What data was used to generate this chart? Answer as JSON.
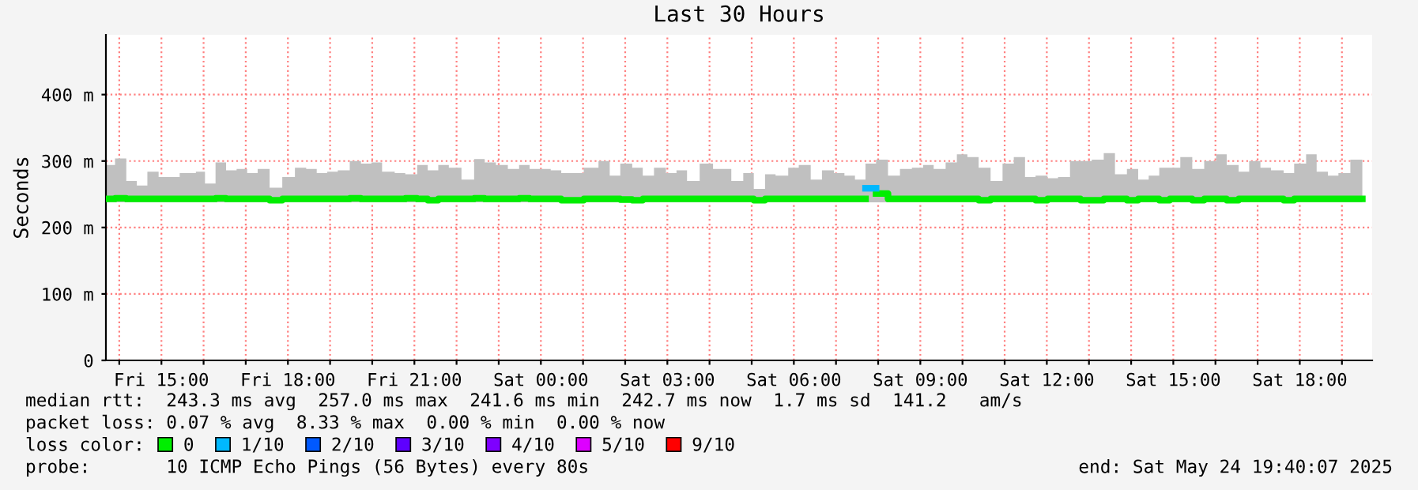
{
  "chart_data": {
    "type": "step",
    "title": "Last 30 Hours",
    "ylabel": "Seconds",
    "legend_title": "loss color:",
    "xlim": [
      "2025-05-23T13:41",
      "2025-05-24T19:43"
    ],
    "ylim": [
      0,
      490
    ],
    "xticks": [
      {
        "value": "2025-05-23T14:00",
        "label": null
      },
      {
        "value": "2025-05-23T15:00",
        "label": "Fri 15:00"
      },
      {
        "value": "2025-05-23T16:00",
        "label": null
      },
      {
        "value": "2025-05-23T17:00",
        "label": null
      },
      {
        "value": "2025-05-23T18:00",
        "label": "Fri 18:00"
      },
      {
        "value": "2025-05-23T19:00",
        "label": null
      },
      {
        "value": "2025-05-23T20:00",
        "label": null
      },
      {
        "value": "2025-05-23T21:00",
        "label": "Fri 21:00"
      },
      {
        "value": "2025-05-23T22:00",
        "label": null
      },
      {
        "value": "2025-05-23T23:00",
        "label": null
      },
      {
        "value": "2025-05-24T00:00",
        "label": "Sat 00:00"
      },
      {
        "value": "2025-05-24T01:00",
        "label": null
      },
      {
        "value": "2025-05-24T02:00",
        "label": null
      },
      {
        "value": "2025-05-24T03:00",
        "label": "Sat 03:00"
      },
      {
        "value": "2025-05-24T04:00",
        "label": null
      },
      {
        "value": "2025-05-24T05:00",
        "label": null
      },
      {
        "value": "2025-05-24T06:00",
        "label": "Sat 06:00"
      },
      {
        "value": "2025-05-24T07:00",
        "label": null
      },
      {
        "value": "2025-05-24T08:00",
        "label": null
      },
      {
        "value": "2025-05-24T09:00",
        "label": "Sat 09:00"
      },
      {
        "value": "2025-05-24T10:00",
        "label": null
      },
      {
        "value": "2025-05-24T11:00",
        "label": null
      },
      {
        "value": "2025-05-24T12:00",
        "label": "Sat 12:00"
      },
      {
        "value": "2025-05-24T13:00",
        "label": null
      },
      {
        "value": "2025-05-24T14:00",
        "label": null
      },
      {
        "value": "2025-05-24T15:00",
        "label": "Sat 15:00"
      },
      {
        "value": "2025-05-24T16:00",
        "label": null
      },
      {
        "value": "2025-05-24T17:00",
        "label": null
      },
      {
        "value": "2025-05-24T18:00",
        "label": "Sat 18:00"
      },
      {
        "value": "2025-05-24T19:00",
        "label": null
      }
    ],
    "yticks": [
      0,
      {
        "value": 100,
        "label": "100 m"
      },
      {
        "value": 200,
        "label": "200 m"
      },
      {
        "value": 300,
        "label": "300 m"
      },
      {
        "value": 400,
        "label": "400 m"
      }
    ],
    "grid": true,
    "legend": "bottom",
    "annotations": [
      "median rtt:  243.3 ms avg  257.0 ms max  241.6 ms min  242.7 ms now  1.7 ms sd  141.2   am/s",
      "packet loss: 0.07 % avg  8.33 % max  0.00 % min  0.00 % now",
      "probe:       10 ICMP Echo Pings (56 Bytes) every 80s",
      "end: Sat May 24 19:40:07 2025"
    ],
    "series": [
      {
        "name": "0",
        "color": "#00ee00",
        "x": [
          "2025-05-23T13:41",
          "2025-05-23T13:54",
          "2025-05-23T14:10",
          "2025-05-23T14:25",
          "2025-05-23T14:40",
          "2025-05-23T14:56",
          "2025-05-23T15:26",
          "2025-05-23T15:49",
          "2025-05-23T16:02",
          "2025-05-23T16:17",
          "2025-05-23T16:32",
          "2025-05-23T16:47",
          "2025-05-23T17:02",
          "2025-05-23T17:17",
          "2025-05-23T17:34",
          "2025-05-23T17:52",
          "2025-05-23T18:10",
          "2025-05-23T18:26",
          "2025-05-23T18:41",
          "2025-05-23T18:56",
          "2025-05-23T19:11",
          "2025-05-23T19:28",
          "2025-05-23T19:44",
          "2025-05-23T19:59",
          "2025-05-23T20:14",
          "2025-05-23T20:32",
          "2025-05-23T20:47",
          "2025-05-23T21:04",
          "2025-05-23T21:19",
          "2025-05-23T21:34",
          "2025-05-23T21:49",
          "2025-05-23T22:07",
          "2025-05-23T22:25",
          "2025-05-23T22:40",
          "2025-05-23T22:56",
          "2025-05-23T23:13",
          "2025-05-23T23:29",
          "2025-05-23T23:44",
          "2025-05-23T23:59",
          "2025-05-24T00:14",
          "2025-05-24T00:29",
          "2025-05-24T01:01",
          "2025-05-24T01:22",
          "2025-05-24T01:38",
          "2025-05-24T01:53",
          "2025-05-24T02:10",
          "2025-05-24T02:25",
          "2025-05-24T02:41",
          "2025-05-24T02:58",
          "2025-05-24T03:13",
          "2025-05-24T03:28",
          "2025-05-24T03:46",
          "2025-05-24T04:05",
          "2025-05-24T04:31",
          "2025-05-24T04:48",
          "2025-05-24T05:03",
          "2025-05-24T05:19",
          "2025-05-24T05:34",
          "2025-05-24T05:52",
          "2025-05-24T06:07",
          "2025-05-24T06:24",
          "2025-05-24T06:40",
          "2025-05-24T06:57",
          "2025-05-24T07:12",
          "2025-05-24T07:27",
          "2025-05-24T07:42",
          "2025-05-24T07:57",
          "2025-05-24T08:14",
          "2025-05-24T08:31",
          "2025-05-24T08:48",
          "2025-05-24T09:04",
          "2025-05-24T09:19",
          "2025-05-24T09:36",
          "2025-05-24T09:52",
          "2025-05-24T10:07",
          "2025-05-24T10:23",
          "2025-05-24T10:40",
          "2025-05-24T10:57",
          "2025-05-24T11:13",
          "2025-05-24T11:29",
          "2025-05-24T11:44",
          "2025-05-24T12:01",
          "2025-05-24T12:16",
          "2025-05-24T12:33",
          "2025-05-24T12:48",
          "2025-05-24T13:04",
          "2025-05-24T13:21",
          "2025-05-24T13:37",
          "2025-05-24T13:54",
          "2025-05-24T14:10",
          "2025-05-24T14:25",
          "2025-05-24T14:40",
          "2025-05-24T14:55",
          "2025-05-24T15:10",
          "2025-05-24T15:27",
          "2025-05-24T15:44",
          "2025-05-24T16:01",
          "2025-05-24T16:16",
          "2025-05-24T16:33",
          "2025-05-24T16:48",
          "2025-05-24T17:04",
          "2025-05-24T17:19",
          "2025-05-24T17:37",
          "2025-05-24T17:52",
          "2025-05-24T18:09",
          "2025-05-24T18:24",
          "2025-05-24T18:40",
          "2025-05-24T18:55",
          "2025-05-24T19:12",
          "2025-05-24T19:29"
        ],
        "values": [
          243,
          244,
          243,
          243,
          243,
          243,
          243,
          243,
          243,
          244,
          243,
          243,
          243,
          243,
          241,
          243,
          243,
          243,
          243,
          243,
          243,
          244,
          243,
          243,
          243,
          243,
          244,
          243,
          241,
          243,
          243,
          243,
          244,
          243,
          243,
          243,
          244,
          243,
          243,
          243,
          241,
          243,
          243,
          243,
          242,
          241,
          243,
          243,
          243,
          243,
          243,
          243,
          243,
          243,
          243,
          241,
          243,
          243,
          243,
          243,
          243,
          243,
          243,
          243,
          243,
          null,
          251,
          243,
          243,
          243,
          243,
          243,
          243,
          243,
          243,
          241,
          243,
          243,
          243,
          243,
          241,
          243,
          243,
          243,
          241,
          241,
          243,
          243,
          241,
          243,
          243,
          241,
          243,
          243,
          241,
          243,
          243,
          241,
          243,
          243,
          243,
          243,
          241,
          243,
          243,
          243,
          243,
          243,
          243,
          243
        ],
        "lower": [
          238,
          238,
          238,
          238,
          238,
          238,
          238,
          238,
          238,
          238,
          238,
          238,
          238,
          238,
          238,
          238,
          238,
          238,
          238,
          238,
          238,
          238,
          238,
          238,
          238,
          238,
          238,
          238,
          238,
          238,
          238,
          238,
          238,
          238,
          238,
          238,
          238,
          238,
          238,
          238,
          238,
          238,
          238,
          238,
          238,
          238,
          238,
          238,
          238,
          238,
          238,
          238,
          238,
          238,
          238,
          238,
          238,
          238,
          238,
          238,
          238,
          238,
          238,
          238,
          238,
          238,
          238,
          238,
          238,
          238,
          238,
          238,
          238,
          238,
          238,
          238,
          238,
          238,
          238,
          238,
          238,
          238,
          238,
          238,
          238,
          238,
          238,
          238,
          238,
          238,
          238,
          238,
          238,
          238,
          238,
          238,
          238,
          238,
          238,
          238,
          238,
          238,
          238,
          238,
          238,
          238,
          238,
          238,
          238,
          238
        ],
        "upper": [
          294,
          304,
          270,
          263,
          284,
          276,
          282,
          284,
          266,
          298,
          286,
          288,
          282,
          288,
          260,
          276,
          290,
          288,
          282,
          284,
          286,
          300,
          296,
          298,
          284,
          282,
          280,
          294,
          286,
          294,
          290,
          272,
          303,
          298,
          294,
          288,
          294,
          288,
          288,
          286,
          282,
          290,
          300,
          278,
          296,
          290,
          278,
          290,
          282,
          286,
          270,
          296,
          288,
          270,
          282,
          258,
          280,
          278,
          290,
          294,
          272,
          286,
          282,
          278,
          272,
          296,
          302,
          278,
          288,
          290,
          294,
          288,
          298,
          310,
          306,
          290,
          270,
          296,
          306,
          276,
          278,
          274,
          276,
          300,
          300,
          302,
          312,
          280,
          288,
          272,
          278,
          290,
          290,
          306,
          288,
          300,
          310,
          294,
          284,
          300,
          290,
          286,
          282,
          296,
          310,
          284,
          278,
          282,
          302,
          302
        ]
      },
      {
        "name": "1/10",
        "color": "#00b8ff",
        "x": [
          "2025-05-24T07:42",
          "2025-05-24T07:57"
        ],
        "values": [
          259,
          259
        ]
      },
      {
        "name": "2/10",
        "color": "#0059ff"
      },
      {
        "name": "3/10",
        "color": "#5e00ff"
      },
      {
        "name": "4/10",
        "color": "#7e00ff"
      },
      {
        "name": "5/10",
        "color": "#dd00ff"
      },
      {
        "name": "9/10",
        "color": "#ff0000"
      }
    ]
  }
}
